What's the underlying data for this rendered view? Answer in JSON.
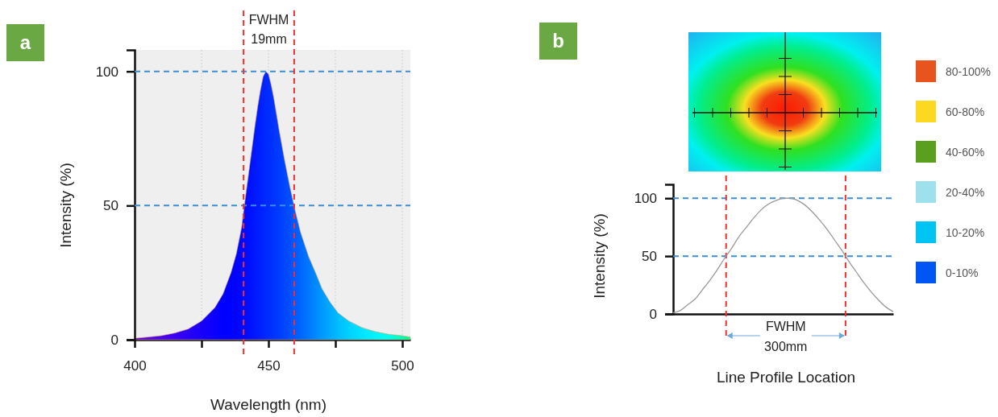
{
  "chart_data": [
    {
      "type": "area",
      "title": "a",
      "xlabel": "Wavelength (nm)",
      "ylabel": "Intensity (%)",
      "xlim": [
        400,
        503
      ],
      "ylim": [
        0,
        108
      ],
      "xticks": [
        400,
        {
          "value": 425,
          "label": null
        },
        450,
        {
          "value": 475,
          "label": null
        },
        500
      ],
      "yticks": [
        0,
        50,
        100
      ],
      "grid": "x",
      "x": [
        400,
        405,
        410,
        415,
        420,
        425,
        430,
        433,
        436,
        438,
        440,
        441,
        443,
        445,
        446,
        447,
        448,
        449,
        450,
        451,
        452,
        454,
        456,
        458,
        460,
        462,
        465,
        468,
        470,
        473,
        476,
        480,
        485,
        490,
        495,
        500,
        503
      ],
      "values": [
        0.5,
        1,
        1.5,
        2.5,
        4,
        7,
        12,
        17,
        25,
        32,
        42,
        50,
        65,
        80,
        87,
        93,
        98,
        100,
        99,
        95,
        90,
        78,
        67,
        57,
        48,
        40,
        31,
        24,
        19,
        14,
        10,
        7,
        4.5,
        3,
        2,
        1.5,
        1
      ],
      "colors": [
        "#5b00e6",
        "#5500ee",
        "#4a00f0",
        "#3c00f5",
        "#2a00f8",
        "#1800fa",
        "#0a00fc",
        "#0000ff",
        "#0000ff",
        "#0004ff",
        "#0008ff",
        "#000cff",
        "#0010ff",
        "#0018ff",
        "#001cff",
        "#0020ff",
        "#0024ff",
        "#0028ff",
        "#002cff",
        "#0030ff",
        "#0034ff",
        "#003cff",
        "#0046ff",
        "#0050ff",
        "#005aff",
        "#0066ff",
        "#0078ff",
        "#008cff",
        "#0098ff",
        "#00aaff",
        "#00bcff",
        "#00d0ff",
        "#00e4ff",
        "#00f4ff",
        "#00fff0",
        "#00ffb0",
        "#00ff80"
      ],
      "ref_lines": [
        {
          "axis": "y",
          "value": 100,
          "color": "#3a8fd8",
          "line_style": "dashed"
        },
        {
          "axis": "y",
          "value": 50,
          "color": "#3a8fd8",
          "line_style": "dashed"
        },
        {
          "axis": "x",
          "value": 440.7,
          "color": "#f03030",
          "line_style": "dashed"
        },
        {
          "axis": "x",
          "value": 459.6,
          "color": "#f03030",
          "line_style": "dashed"
        }
      ],
      "annotations": [
        "FWHM",
        "19mm"
      ]
    },
    {
      "type": "line",
      "title": "b",
      "xlabel": "Line Profile Location",
      "ylabel": "Intensity (%)",
      "ylim": [
        0,
        112
      ],
      "yticks": [
        0,
        50,
        100
      ],
      "tick_labels": "y",
      "categories": [
        null,
        null,
        null,
        null,
        null,
        null,
        null,
        null,
        null,
        null,
        null,
        null,
        null,
        null,
        null,
        null,
        null,
        null,
        null,
        null,
        null,
        null,
        null,
        null,
        null,
        null,
        null,
        null,
        null,
        null,
        null
      ],
      "series": [
        {
          "color": "#999999",
          "values": [
            1,
            3,
            8,
            13,
            21,
            29,
            38,
            48,
            57,
            67,
            75,
            83,
            90,
            95,
            98,
            100,
            100,
            98,
            94,
            88,
            81,
            73,
            64,
            55,
            45,
            36,
            27,
            19,
            12,
            6,
            2
          ]
        }
      ],
      "ref_lines": [
        {
          "axis": "y",
          "value": 100,
          "color": "#3a8fd8",
          "line_style": "dashed"
        },
        {
          "axis": "y",
          "value": 50,
          "color": "#3a8fd8",
          "line_style": "dashed"
        }
      ],
      "annotations": [
        "FWHM",
        "300mm"
      ]
    },
    {
      "type": "other",
      "categories": [
        "80-100%",
        "60-80%",
        "40-60%",
        "20-40%",
        "10-20%",
        "0-10%"
      ],
      "colors": [
        "#e8541e",
        "#fcd820",
        "#5aa01e",
        "#9ee0ec",
        "#00c4f4",
        "#0055f5"
      ]
    }
  ]
}
